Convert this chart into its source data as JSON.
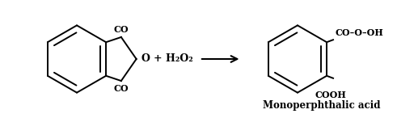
{
  "background_color": "#ffffff",
  "fig_width": 4.91,
  "fig_height": 1.46,
  "dpi": 100,
  "text_color": "#000000",
  "line_color": "#000000",
  "reagent": "+ H₂O₂",
  "product_name": "Monoperphthalic acid",
  "co_top": "CO",
  "o_label": "O",
  "co_bot": "CO",
  "product_co_oh": "CO–O–OH",
  "product_cooh": "COOH"
}
